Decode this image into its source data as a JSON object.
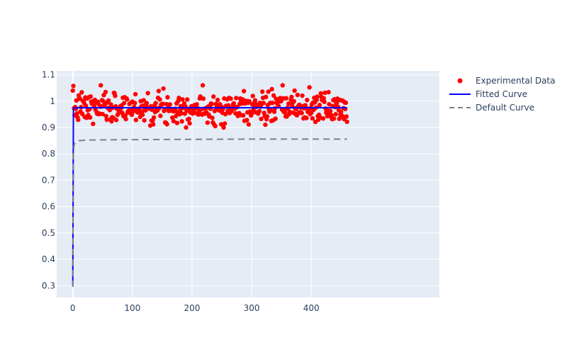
{
  "chart_data": {
    "type": "scatter",
    "title": "",
    "xlabel": "",
    "ylabel": "",
    "xlim": [
      -27,
      615
    ],
    "ylim": [
      0.255,
      1.115
    ],
    "x_ticks": [
      0,
      100,
      200,
      300,
      400
    ],
    "x_tick_labels": [
      "0",
      "100",
      "200",
      "300",
      "400"
    ],
    "y_ticks": [
      0.3,
      0.4,
      0.5,
      0.6,
      0.7,
      0.8,
      0.9,
      1.0,
      1.1
    ],
    "y_tick_labels": [
      "0.3",
      "0.4",
      "0.5",
      "0.6",
      "0.7",
      "0.8",
      "0.9",
      "1",
      "1.1"
    ],
    "grid": true,
    "legend_position": "top-right",
    "series": [
      {
        "name": "Experimental Data",
        "kind": "markers",
        "color": "#ff0000",
        "noise_seed": 7,
        "x": [
          0,
          1,
          2,
          3,
          4,
          5,
          6,
          7,
          8,
          9,
          10,
          11,
          12,
          13,
          14,
          15,
          16,
          17,
          18,
          19,
          20,
          21,
          22,
          23,
          24,
          25,
          26,
          27,
          28,
          29,
          30,
          31,
          32,
          33,
          34,
          35,
          36,
          37,
          38,
          39,
          40,
          41,
          42,
          43,
          44,
          45,
          46,
          47,
          48,
          49,
          50,
          51,
          52,
          53,
          54,
          55,
          56,
          57,
          58,
          59,
          60,
          61,
          62,
          63,
          64,
          65,
          66,
          67,
          68,
          69,
          70,
          71,
          72,
          73,
          74,
          75,
          76,
          77,
          78,
          79,
          80,
          81,
          82,
          83,
          84,
          85,
          86,
          87,
          88,
          89,
          90,
          91,
          92,
          93,
          94,
          95,
          96,
          97,
          98,
          99,
          100,
          101,
          102,
          103,
          104,
          105,
          106,
          107,
          108,
          109,
          110,
          111,
          112,
          113,
          114,
          115,
          116,
          117,
          118,
          119,
          120,
          121,
          122,
          123,
          124,
          125,
          126,
          127,
          128,
          129,
          130,
          131,
          132,
          133,
          134,
          135,
          136,
          137,
          138,
          139,
          140,
          141,
          142,
          143,
          144,
          145,
          146,
          147,
          148,
          149,
          150,
          151,
          152,
          153,
          154,
          155,
          156,
          157,
          158,
          159,
          160,
          161,
          162,
          163,
          164,
          165,
          166,
          167,
          168,
          169,
          170,
          171,
          172,
          173,
          174,
          175,
          176,
          177,
          178,
          179,
          180,
          181,
          182,
          183,
          184,
          185,
          186,
          187,
          188,
          189,
          190,
          191,
          192,
          193,
          194,
          195,
          196,
          197,
          198,
          199,
          200,
          201,
          202,
          203,
          204,
          205,
          206,
          207,
          208,
          209,
          210,
          211,
          212,
          213,
          214,
          215,
          216,
          217,
          218,
          219,
          220,
          221,
          222,
          223,
          224,
          225,
          226,
          227,
          228,
          229,
          230,
          231,
          232,
          233,
          234,
          235,
          236,
          237,
          238,
          239,
          240,
          241,
          242,
          243,
          244,
          245,
          246,
          247,
          248,
          249,
          250,
          251,
          252,
          253,
          254,
          255,
          256,
          257,
          258,
          259,
          260,
          261,
          262,
          263,
          264,
          265,
          266,
          267,
          268,
          269,
          270,
          271,
          272,
          273,
          274,
          275,
          276,
          277,
          278,
          279,
          280,
          281,
          282,
          283,
          284,
          285,
          286,
          287,
          288,
          289,
          290,
          291,
          292,
          293,
          294,
          295,
          296,
          297,
          298,
          299,
          300,
          301,
          302,
          303,
          304,
          305,
          306,
          307,
          308,
          309,
          310,
          311,
          312,
          313,
          314,
          315,
          316,
          317,
          318,
          319,
          320,
          321,
          322,
          323,
          324,
          325,
          326,
          327,
          328,
          329,
          330,
          331,
          332,
          333,
          334,
          335,
          336,
          337,
          338,
          339,
          340,
          341,
          342,
          343,
          344,
          345,
          346,
          347,
          348,
          349,
          350,
          351,
          352,
          353,
          354,
          355,
          356,
          357,
          358,
          359,
          360,
          361,
          362,
          363,
          364,
          365,
          366,
          367,
          368,
          369,
          370,
          371,
          372,
          373,
          374,
          375,
          376,
          377,
          378,
          379,
          380,
          381,
          382,
          383,
          384,
          385,
          386,
          387,
          388,
          389,
          390,
          391,
          392,
          393,
          394,
          395,
          396,
          397,
          398,
          399,
          400,
          401,
          402,
          403,
          404,
          405,
          406,
          407,
          408,
          409,
          410,
          411,
          412,
          413,
          414,
          415,
          416,
          417,
          418,
          419,
          420,
          421,
          422,
          423,
          424,
          425,
          426,
          427,
          428,
          429,
          430,
          431,
          432,
          433,
          434,
          435,
          436,
          437,
          438,
          439,
          440,
          441,
          442,
          443,
          444,
          445,
          446,
          447,
          448,
          449,
          450,
          451,
          452,
          453,
          454,
          455,
          456,
          457,
          458,
          459,
          460
        ],
        "y_model": "approximately 0.975 with scatter ±0.08; first point ~1.04",
        "y_first": 1.04,
        "y_center": 0.975,
        "y_spread": 0.05
      },
      {
        "name": "Fitted Curve",
        "kind": "line",
        "color": "#0000ff",
        "dash": "solid",
        "x": [
          0,
          0.5,
          1,
          2,
          5,
          460
        ],
        "y": [
          0.3,
          0.65,
          0.965,
          0.975,
          0.975,
          0.975
        ]
      },
      {
        "name": "Default Curve",
        "kind": "line",
        "color": "#808080",
        "dash": "dash",
        "x": [
          0,
          0.5,
          1,
          2,
          3,
          5,
          10,
          20,
          50,
          100,
          200,
          300,
          400,
          460
        ],
        "y": [
          0.295,
          0.6,
          0.8,
          0.83,
          0.84,
          0.845,
          0.85,
          0.852,
          0.853,
          0.854,
          0.855,
          0.856,
          0.856,
          0.856
        ]
      }
    ]
  }
}
